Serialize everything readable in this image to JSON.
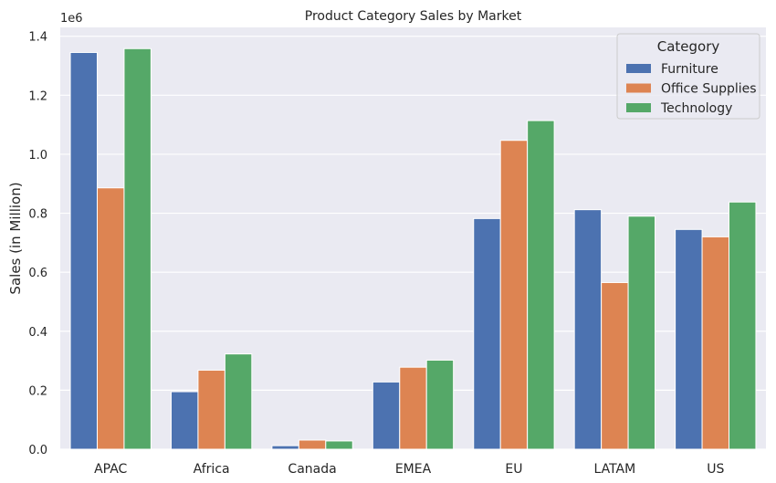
{
  "chart_data": {
    "type": "bar",
    "title": "Product Category Sales by Market",
    "xlabel": "",
    "ylabel": "Sales (in Million)",
    "y_offset_label": "1e6",
    "categories": [
      "APAC",
      "Africa",
      "Canada",
      "EMEA",
      "EU",
      "LATAM",
      "US"
    ],
    "series": [
      {
        "name": "Furniture",
        "color": "#4c72b0",
        "values": [
          1.345,
          0.195,
          0.012,
          0.228,
          0.782,
          0.812,
          0.745
        ]
      },
      {
        "name": "Office Supplies",
        "color": "#dd8452",
        "values": [
          0.886,
          0.268,
          0.031,
          0.278,
          1.047,
          0.565,
          0.72
        ]
      },
      {
        "name": "Technology",
        "color": "#55a868",
        "values": [
          1.358,
          0.323,
          0.028,
          0.302,
          1.114,
          0.79,
          0.838
        ]
      }
    ],
    "ylim": [
      0,
      1.43
    ],
    "yticks": [
      "0.0",
      "0.2",
      "0.4",
      "0.6",
      "0.8",
      "1.0",
      "1.2",
      "1.4"
    ],
    "grid": true,
    "background": "#eaeaf2",
    "legend": {
      "title": "Category",
      "placement": "top-right"
    }
  }
}
